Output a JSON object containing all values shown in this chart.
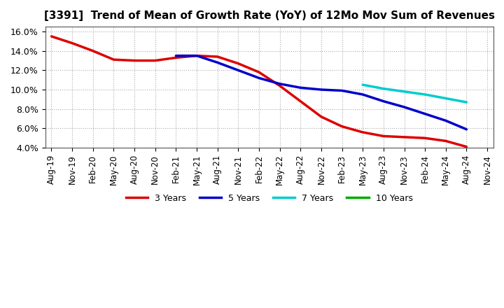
{
  "title": "[3391]  Trend of Mean of Growth Rate (YoY) of 12Mo Mov Sum of Revenues",
  "ylim": [
    0.04,
    0.165
  ],
  "yticks": [
    0.04,
    0.06,
    0.08,
    0.1,
    0.12,
    0.14,
    0.16
  ],
  "background_color": "#ffffff",
  "grid_color": "#aaaaaa",
  "x_labels": [
    "Aug-19",
    "Nov-19",
    "Feb-20",
    "May-20",
    "Aug-20",
    "Nov-20",
    "Feb-21",
    "May-21",
    "Aug-21",
    "Nov-21",
    "Feb-22",
    "May-22",
    "Aug-22",
    "Nov-22",
    "Feb-23",
    "May-23",
    "Aug-23",
    "Nov-23",
    "Feb-24",
    "May-24",
    "Aug-24",
    "Nov-24"
  ],
  "series": [
    {
      "label": "3 Years",
      "color": "#dd0000",
      "x_idx": [
        0,
        1,
        2,
        3,
        4,
        5,
        6,
        7,
        8,
        9,
        10,
        11,
        12,
        13,
        14,
        15,
        16,
        17,
        18,
        19,
        20
      ],
      "y": [
        0.155,
        0.148,
        0.14,
        0.131,
        0.13,
        0.13,
        0.133,
        0.135,
        0.134,
        0.127,
        0.118,
        0.104,
        0.088,
        0.072,
        0.062,
        0.056,
        0.052,
        0.051,
        0.05,
        0.047,
        0.041
      ]
    },
    {
      "label": "5 Years",
      "color": "#0000cc",
      "x_idx": [
        6,
        7,
        8,
        9,
        10,
        11,
        12,
        13,
        14,
        15,
        16,
        17,
        18,
        19,
        20
      ],
      "y": [
        0.135,
        0.135,
        0.128,
        0.12,
        0.112,
        0.106,
        0.102,
        0.1,
        0.099,
        0.095,
        0.088,
        0.082,
        0.075,
        0.068,
        0.059
      ]
    },
    {
      "label": "7 Years",
      "color": "#00cccc",
      "x_idx": [
        15,
        16,
        17,
        18,
        19,
        20
      ],
      "y": [
        0.105,
        0.101,
        0.098,
        0.095,
        0.091,
        0.087
      ]
    },
    {
      "label": "10 Years",
      "color": "#00aa00",
      "x_idx": [
        20
      ],
      "y": [
        0.086
      ]
    }
  ],
  "legend_entries": [
    "3 Years",
    "5 Years",
    "7 Years",
    "10 Years"
  ],
  "legend_colors": [
    "#dd0000",
    "#0000cc",
    "#00cccc",
    "#00aa00"
  ]
}
